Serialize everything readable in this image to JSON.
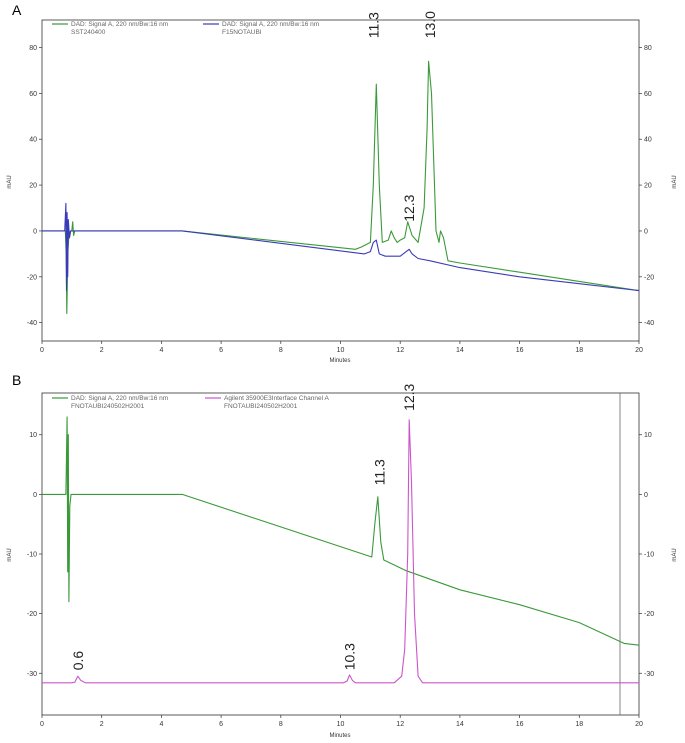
{
  "figure": {
    "panel_labels": [
      "A",
      "B"
    ]
  },
  "chart_data": [
    {
      "type": "line",
      "panel": "A",
      "xlabel": "Minutes",
      "ylabel": "mAU",
      "y2label": "mAU",
      "xlim": [
        0,
        20
      ],
      "ylim": [
        -48,
        92
      ],
      "x_ticks": [
        0,
        2,
        4,
        6,
        8,
        10,
        12,
        14,
        16,
        18,
        20
      ],
      "y_ticks": [
        -40,
        -20,
        0,
        20,
        40,
        60,
        80
      ],
      "y2_ticks": [
        -40,
        -20,
        0,
        20,
        40,
        60,
        80
      ],
      "legend": [
        {
          "line1": "DAD: Signal A, 220 nm/Bw:16 nm",
          "line2": "SST240400",
          "color": "#3a9a3a"
        },
        {
          "line1": "DAD: Signal A, 220 nm/Bw:16 nm",
          "line2": "F15NOTAUBI",
          "color": "#3b3bb8"
        }
      ],
      "peak_labels": [
        {
          "text": "11.3",
          "x": 11.1,
          "y": 84
        },
        {
          "text": "12.3",
          "x": 12.3,
          "y": 4
        },
        {
          "text": "13.0",
          "x": 13.0,
          "y": 84
        }
      ],
      "series": [
        {
          "color": "#3a9a3a",
          "x": [
            0,
            0.78,
            0.81,
            0.83,
            0.85,
            0.87,
            0.9,
            0.95,
            1.0,
            1.03,
            1.06,
            1.1,
            4.7,
            10.5,
            10.7,
            11.0,
            11.1,
            11.2,
            11.3,
            11.4,
            11.6,
            11.7,
            11.8,
            11.9,
            12.0,
            12.15,
            12.25,
            12.4,
            12.6,
            12.8,
            12.9,
            12.95,
            13.05,
            13.2,
            13.3,
            13.35,
            13.45,
            13.6,
            14,
            16,
            18,
            20
          ],
          "y": [
            0,
            0,
            -10,
            -36,
            -22,
            -8,
            -2,
            0,
            0,
            4,
            -2,
            0,
            0,
            -8,
            -7,
            -5,
            20,
            64,
            20,
            -5,
            -4,
            0,
            -3,
            -5,
            -4,
            -3,
            4,
            -2,
            -5,
            10,
            45,
            74,
            60,
            0,
            -5,
            0,
            -3,
            -13,
            -14,
            -18,
            -22,
            -26
          ]
        },
        {
          "color": "#3b3bb8",
          "x": [
            0,
            0.76,
            0.8,
            0.82,
            0.84,
            0.86,
            0.88,
            0.92,
            0.96,
            1.0,
            4.7,
            10.8,
            11.0,
            11.1,
            11.2,
            11.3,
            11.5,
            12.0,
            12.2,
            12.3,
            12.4,
            12.6,
            13.0,
            14,
            16,
            18,
            20
          ],
          "y": [
            0,
            0,
            12,
            -26,
            8,
            -20,
            5,
            -3,
            0,
            0,
            0,
            -10,
            -9,
            -5,
            -4,
            -10,
            -11,
            -11,
            -9,
            -8,
            -10,
            -12,
            -13,
            -16,
            -20,
            -23,
            -26
          ]
        }
      ]
    },
    {
      "type": "line",
      "panel": "B",
      "xlabel": "Minutes",
      "ylabel": "mAU",
      "y2label": "mAU",
      "xlim": [
        0,
        20
      ],
      "ylim": [
        -37,
        17
      ],
      "x_ticks": [
        0,
        2,
        4,
        6,
        8,
        10,
        12,
        14,
        16,
        18,
        20
      ],
      "y_ticks": [
        -30,
        -20,
        -10,
        0,
        10
      ],
      "y2_ticks": [
        -30,
        -20,
        -10,
        0,
        10
      ],
      "legend": [
        {
          "line1": "DAD: Signal A, 220 nm/Bw:16 nm",
          "line2": "FNOTAUBI240502H2001",
          "color": "#3a9a3a"
        },
        {
          "line1": "Agilent 35900E3Interface Channel A",
          "line2": "FNOTAUBI240502H2001",
          "color": "#cc55cc"
        }
      ],
      "peak_labels": [
        {
          "text": "0.6",
          "x": 1.2,
          "y": -29.5
        },
        {
          "text": "10.3",
          "x": 10.3,
          "y": -29.5
        },
        {
          "text": "11.3",
          "x": 11.3,
          "y": 1.5
        },
        {
          "text": "12.3",
          "x": 12.3,
          "y": 14
        }
      ],
      "series": [
        {
          "color": "#3a9a3a",
          "x": [
            0,
            0.8,
            0.84,
            0.86,
            0.88,
            0.9,
            0.93,
            0.97,
            1.0,
            1.1,
            4.7,
            11.05,
            11.15,
            11.25,
            11.35,
            11.45,
            12.2,
            14,
            16,
            18,
            19.5,
            20
          ],
          "y": [
            0,
            0,
            13,
            -13,
            10,
            -18,
            -2,
            0,
            0,
            0,
            0,
            -10.5,
            -5,
            -0.4,
            -8,
            -11,
            -12.8,
            -16,
            -18.5,
            -21.5,
            -25,
            -25.3
          ]
        },
        {
          "color": "#cc55cc",
          "x": [
            0,
            1.0,
            1.1,
            1.2,
            1.3,
            1.45,
            10.1,
            10.22,
            10.3,
            10.4,
            10.5,
            11.8,
            12.05,
            12.15,
            12.25,
            12.3,
            12.38,
            12.48,
            12.6,
            12.75,
            14,
            16,
            18,
            20
          ],
          "y": [
            -31.6,
            -31.6,
            -31.5,
            -30.5,
            -31.2,
            -31.6,
            -31.6,
            -31.3,
            -30.3,
            -31.2,
            -31.6,
            -31.6,
            -30.5,
            -26,
            -10,
            12.5,
            2,
            -20,
            -30.5,
            -31.6,
            -31.6,
            -31.6,
            -31.6,
            -31.6
          ]
        }
      ]
    }
  ]
}
